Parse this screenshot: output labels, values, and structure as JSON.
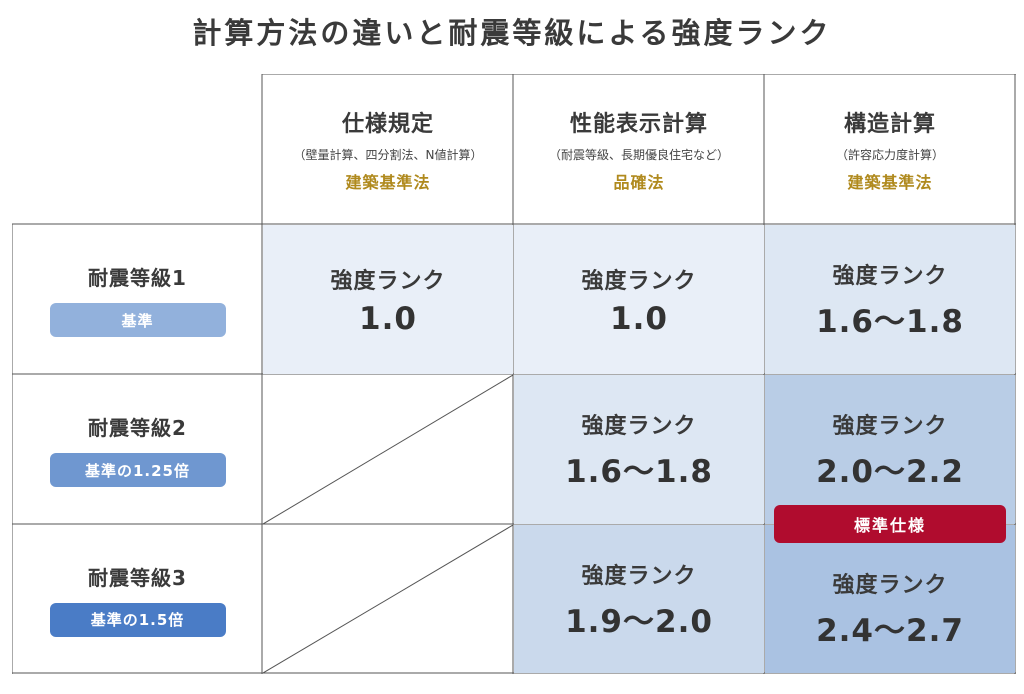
{
  "title": "計算方法の違いと耐震等級による強度ランク",
  "colors": {
    "cell_light": "#e9eff8",
    "cell_mid": "#cad9ec",
    "cell_dark": "#b4c9e4",
    "badge1": "#92b1dc",
    "badge2": "#6f97d0",
    "badge3": "#4a7cc6",
    "law_gold": "#b08a1e",
    "standard_red": "#b00c2e"
  },
  "columns": [
    {
      "title": "仕様規定",
      "sub": "（壁量計算、四分割法、N値計算）",
      "law": "建築基準法"
    },
    {
      "title": "性能表示計算",
      "sub": "（耐震等級、長期優良住宅など）",
      "law": "品確法"
    },
    {
      "title": "構造計算",
      "sub": "（許容応力度計算）",
      "law": "建築基準法"
    }
  ],
  "rows": [
    {
      "grade": "耐震等級1",
      "badge": "基準",
      "cells": [
        {
          "label": "強度ランク",
          "value": "1.0"
        },
        {
          "label": "強度ランク",
          "value": "1.0"
        },
        {
          "label": "強度ランク",
          "value": "1.6〜1.8"
        }
      ]
    },
    {
      "grade": "耐震等級2",
      "badge": "基準の1.25倍",
      "cells": [
        {
          "label": "",
          "value": ""
        },
        {
          "label": "強度ランク",
          "value": "1.6〜1.8"
        },
        {
          "label": "強度ランク",
          "value": "2.0〜2.2"
        }
      ]
    },
    {
      "grade": "耐震等級3",
      "badge": "基準の1.5倍",
      "cells": [
        {
          "label": "",
          "value": ""
        },
        {
          "label": "強度ランク",
          "value": "1.9〜2.0"
        },
        {
          "label": "強度ランク",
          "value": "2.4〜2.7"
        }
      ]
    }
  ],
  "standard_badge": "標準仕様"
}
